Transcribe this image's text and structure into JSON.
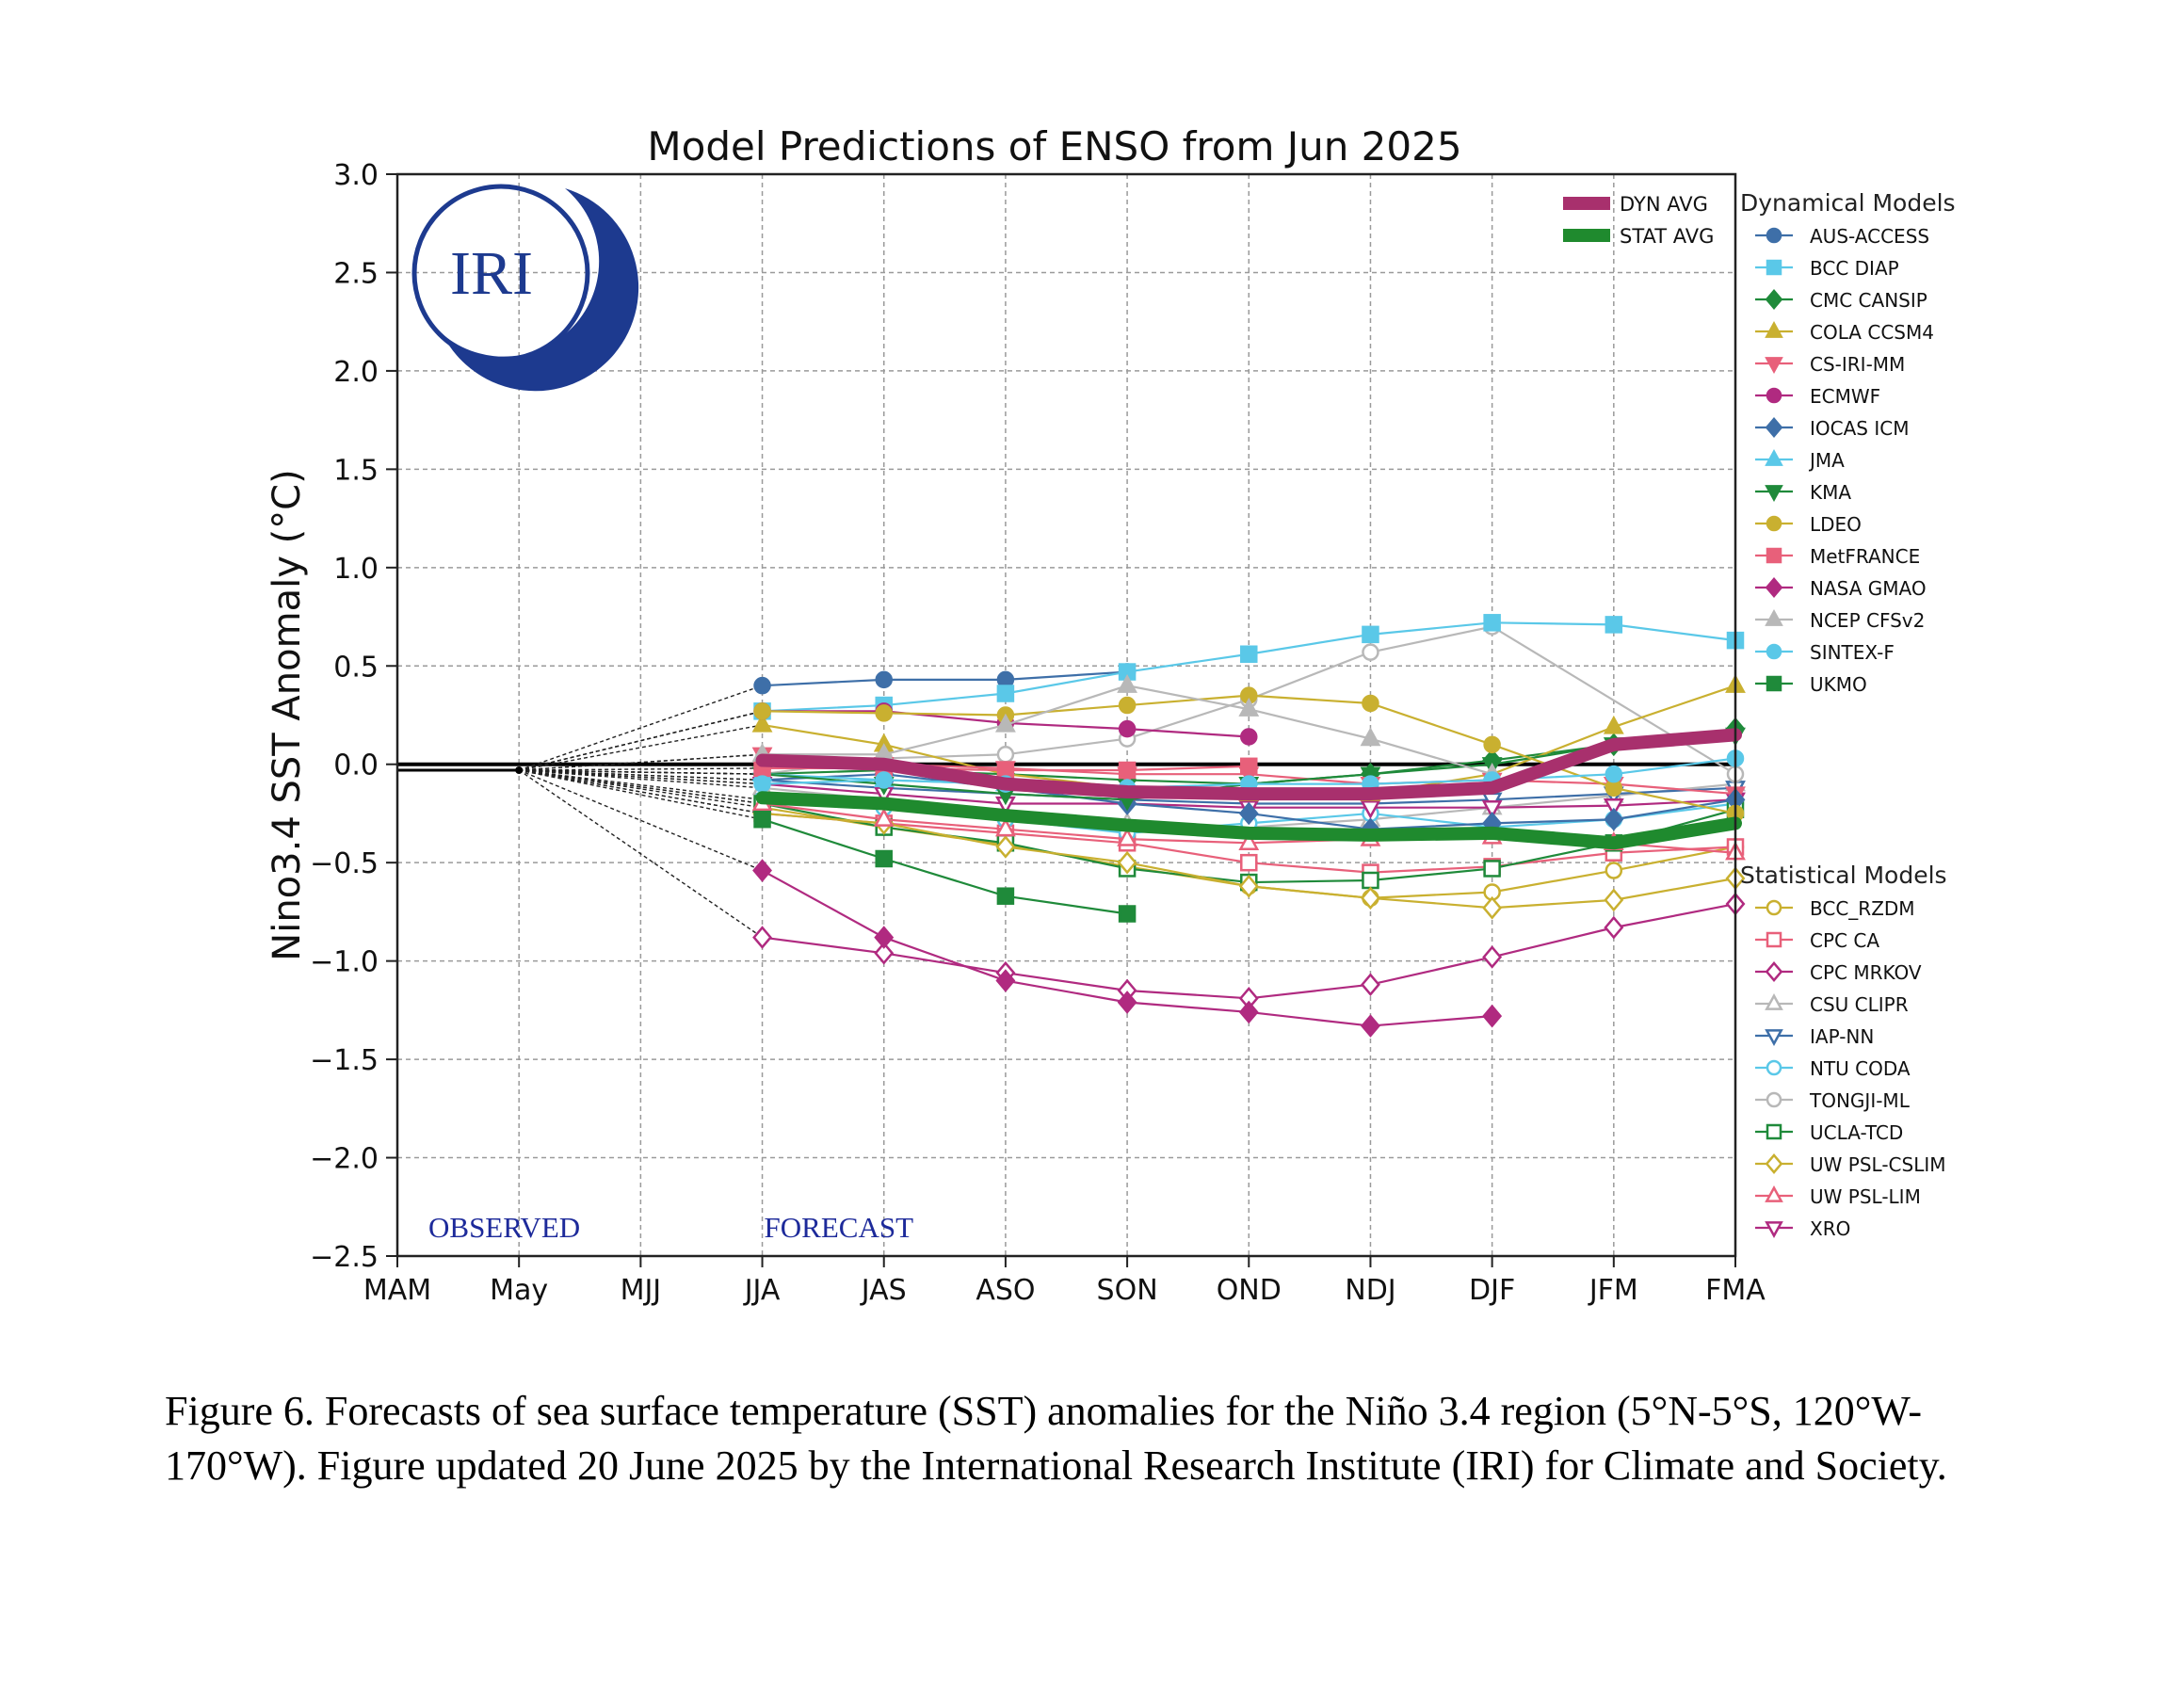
{
  "caption": "Figure 6. Forecasts of sea surface temperature (SST) anomalies for the Niño 3.4 region (5°N-5°S, 120°W-170°W). Figure updated 20 June 2025 by the International Research Institute (IRI) for Climate and Society.",
  "logo_text": "IRI",
  "chart_data": {
    "type": "line",
    "title": "Model Predictions of ENSO from Jun 2025",
    "ylabel": "Nino3.4 SST Anomaly (°C)",
    "xlabel": "",
    "categories": [
      "MAM",
      "May",
      "MJJ",
      "JJA",
      "JAS",
      "ASO",
      "SON",
      "OND",
      "NDJ",
      "DJF",
      "JFM",
      "FMA"
    ],
    "ylim": [
      -2.5,
      3.0
    ],
    "yticks": [
      -2.5,
      -2.0,
      -1.5,
      -1.0,
      -0.5,
      0.0,
      0.5,
      1.0,
      1.5,
      2.0,
      2.5,
      3.0
    ],
    "grid": true,
    "annotations": {
      "observed": "OBSERVED",
      "forecast": "FORECAST"
    },
    "legend_dynamical_title": "Dynamical Models",
    "legend_statistical_title": "Statistical Models",
    "observed": [
      -0.03,
      -0.03
    ],
    "averages": [
      {
        "name": "DYN AVG",
        "color": "#a8306d",
        "values": [
          null,
          null,
          null,
          0.02,
          0.0,
          -0.1,
          -0.14,
          -0.15,
          -0.15,
          -0.12,
          0.1,
          0.15
        ]
      },
      {
        "name": "STAT AVG",
        "color": "#1f8a2e",
        "values": [
          null,
          null,
          null,
          -0.17,
          -0.2,
          -0.26,
          -0.31,
          -0.35,
          -0.36,
          -0.35,
          -0.4,
          -0.3
        ]
      }
    ],
    "dynamical": [
      {
        "name": "AUS-ACCESS",
        "color": "#3e6fa8",
        "marker": "circle",
        "filled": true,
        "values": [
          null,
          null,
          null,
          0.4,
          0.43,
          0.43,
          0.47
        ]
      },
      {
        "name": "BCC DIAP",
        "color": "#5ac8e8",
        "marker": "square",
        "filled": true,
        "values": [
          null,
          null,
          null,
          0.27,
          0.3,
          0.36,
          0.47,
          0.56,
          0.66,
          0.72,
          0.71,
          0.63
        ]
      },
      {
        "name": "CMC CANSIP",
        "color": "#1f8a3a",
        "marker": "diamond",
        "filled": true,
        "values": [
          null,
          null,
          null,
          -0.05,
          -0.03,
          -0.05,
          -0.08,
          -0.1,
          -0.05,
          0.02,
          0.1,
          0.18
        ]
      },
      {
        "name": "COLA CCSM4",
        "color": "#c9b030",
        "marker": "triangle",
        "filled": true,
        "values": [
          null,
          null,
          null,
          0.2,
          0.1,
          -0.05,
          -0.12,
          -0.15,
          -0.15,
          -0.05,
          0.19,
          0.4
        ]
      },
      {
        "name": "CS-IRI-MM",
        "color": "#e8607a",
        "marker": "tri-down",
        "filled": true,
        "values": [
          null,
          null,
          null,
          0.05,
          0.0,
          -0.02,
          -0.05,
          -0.05,
          -0.1,
          -0.08,
          -0.1,
          -0.15
        ]
      },
      {
        "name": "ECMWF",
        "color": "#b02a80",
        "marker": "circle",
        "filled": true,
        "values": [
          null,
          null,
          null,
          0.27,
          0.27,
          0.21,
          0.18,
          0.14
        ]
      },
      {
        "name": "IOCAS ICM",
        "color": "#3e6fa8",
        "marker": "diamond",
        "filled": true,
        "values": [
          null,
          null,
          null,
          -0.08,
          -0.05,
          -0.12,
          -0.2,
          -0.25,
          -0.33,
          -0.3,
          -0.28,
          -0.18
        ]
      },
      {
        "name": "JMA",
        "color": "#5ac8e8",
        "marker": "triangle",
        "filled": true,
        "values": [
          null,
          null,
          null,
          -0.05,
          -0.08,
          -0.1,
          -0.12
        ]
      },
      {
        "name": "KMA",
        "color": "#1f8a3a",
        "marker": "tri-down",
        "filled": true,
        "values": [
          null,
          null,
          null,
          -0.05,
          -0.1,
          -0.15,
          -0.18,
          -0.1,
          -0.05,
          0.0,
          0.1,
          0.15
        ]
      },
      {
        "name": "LDEO",
        "color": "#c9b030",
        "marker": "circle",
        "filled": true,
        "values": [
          null,
          null,
          null,
          0.27,
          0.26,
          0.25,
          0.3,
          0.35,
          0.31,
          0.1,
          -0.12,
          -0.25
        ]
      },
      {
        "name": "MetFRANCE",
        "color": "#e8607a",
        "marker": "square",
        "filled": true,
        "values": [
          null,
          null,
          null,
          -0.02,
          -0.02,
          -0.03,
          -0.03,
          -0.01
        ]
      },
      {
        "name": "NASA GMAO",
        "color": "#b02a80",
        "marker": "diamond",
        "filled": true,
        "values": [
          null,
          null,
          null,
          -0.54,
          -0.88,
          -1.1,
          -1.21,
          -1.26,
          -1.33,
          -1.28
        ]
      },
      {
        "name": "NCEP CFSv2",
        "color": "#b8b8b8",
        "marker": "triangle",
        "filled": true,
        "values": [
          null,
          null,
          null,
          0.05,
          0.05,
          0.2,
          0.4,
          0.28,
          0.13,
          -0.05
        ]
      },
      {
        "name": "SINTEX-F",
        "color": "#5ac8e8",
        "marker": "circle",
        "filled": true,
        "values": [
          null,
          null,
          null,
          -0.1,
          -0.08,
          -0.1,
          -0.12,
          -0.1,
          -0.1,
          -0.08,
          -0.05,
          0.03
        ]
      },
      {
        "name": "UKMO",
        "color": "#1f8a3a",
        "marker": "square",
        "filled": true,
        "values": [
          null,
          null,
          null,
          -0.28,
          -0.48,
          -0.67,
          -0.76
        ]
      }
    ],
    "statistical": [
      {
        "name": "BCC_RZDM",
        "color": "#c9b030",
        "marker": "circle",
        "filled": false,
        "values": [
          null,
          null,
          null,
          -0.22,
          -0.32,
          -0.41,
          -0.52,
          -0.62,
          -0.68,
          -0.65,
          -0.54,
          -0.42
        ]
      },
      {
        "name": "CPC CA",
        "color": "#e8607a",
        "marker": "square",
        "filled": false,
        "values": [
          null,
          null,
          null,
          -0.25,
          -0.3,
          -0.35,
          -0.4,
          -0.5,
          -0.55,
          -0.52,
          -0.45,
          -0.42
        ]
      },
      {
        "name": "CPC MRKOV",
        "color": "#b02a80",
        "marker": "diamond",
        "filled": false,
        "values": [
          null,
          null,
          null,
          -0.88,
          -0.96,
          -1.06,
          -1.15,
          -1.19,
          -1.12,
          -0.98,
          -0.83,
          -0.71
        ]
      },
      {
        "name": "CSU CLIPR",
        "color": "#b8b8b8",
        "marker": "triangle",
        "filled": false,
        "values": [
          null,
          null,
          null,
          -0.12,
          -0.18,
          -0.25,
          -0.3,
          -0.32,
          -0.28,
          -0.22,
          -0.16,
          -0.1
        ]
      },
      {
        "name": "IAP-NN",
        "color": "#3e6fa8",
        "marker": "tri-down",
        "filled": false,
        "values": [
          null,
          null,
          null,
          -0.08,
          -0.12,
          -0.15,
          -0.18,
          -0.2,
          -0.2,
          -0.18,
          -0.15,
          -0.12
        ]
      },
      {
        "name": "NTU CODA",
        "color": "#5ac8e8",
        "marker": "circle",
        "filled": false,
        "values": [
          null,
          null,
          null,
          -0.18,
          -0.22,
          -0.28,
          -0.35,
          -0.3,
          -0.25,
          -0.32,
          -0.28,
          -0.2
        ]
      },
      {
        "name": "TONGJI-ML",
        "color": "#b8b8b8",
        "marker": "circle",
        "filled": false,
        "values": [
          null,
          null,
          null,
          -0.05,
          0.03,
          0.05,
          0.13,
          0.33,
          0.57,
          0.7,
          null,
          -0.05
        ]
      },
      {
        "name": "UCLA-TCD",
        "color": "#1f8a3a",
        "marker": "square",
        "filled": false,
        "values": [
          null,
          null,
          null,
          -0.2,
          -0.32,
          -0.4,
          -0.53,
          -0.6,
          -0.59,
          -0.53,
          -0.4,
          -0.23
        ]
      },
      {
        "name": "UW PSL-CSLIM",
        "color": "#c9b030",
        "marker": "diamond",
        "filled": false,
        "values": [
          null,
          null,
          null,
          -0.25,
          -0.3,
          -0.42,
          -0.5,
          -0.62,
          -0.68,
          -0.73,
          -0.69,
          -0.58
        ]
      },
      {
        "name": "UW PSL-LIM",
        "color": "#e8607a",
        "marker": "triangle",
        "filled": false,
        "values": [
          null,
          null,
          null,
          -0.2,
          -0.28,
          -0.33,
          -0.38,
          -0.4,
          -0.38,
          -0.37,
          -0.4,
          -0.45
        ]
      },
      {
        "name": "XRO",
        "color": "#b02a80",
        "marker": "tri-down",
        "filled": false,
        "values": [
          null,
          null,
          null,
          -0.1,
          -0.15,
          -0.2,
          -0.2,
          -0.22,
          -0.22,
          -0.22,
          -0.21,
          -0.18
        ]
      }
    ]
  }
}
